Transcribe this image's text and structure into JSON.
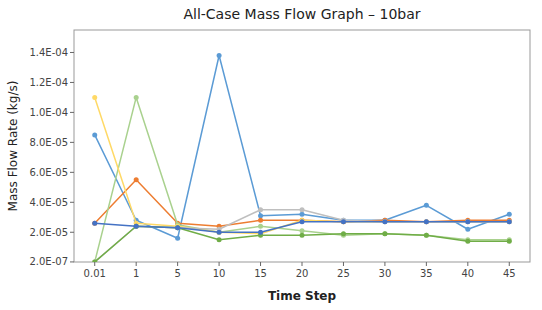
{
  "chart_data": {
    "type": "line",
    "title": "All-Case Mass Flow Graph – 10bar",
    "x_label": "Time Step",
    "y_label": "Mass Flow Rate (kg/s)",
    "categories": [
      "0.01",
      "1",
      "5",
      "10",
      "15",
      "20",
      "25",
      "30",
      "35",
      "40",
      "45"
    ],
    "series": [
      {
        "color": "#5b9bd5",
        "values": [
          8.5e-05,
          2.8e-05,
          1.6e-05,
          0.000138,
          3.1e-05,
          3.2e-05,
          2.8e-05,
          2.8e-05,
          3.8e-05,
          2.2e-05,
          3.2e-05
        ]
      },
      {
        "color": "#ed7d31",
        "values": [
          2.6e-05,
          5.5e-05,
          2.6e-05,
          2.4e-05,
          2.8e-05,
          2.8e-05,
          2.7e-05,
          2.8e-05,
          2.7e-05,
          2.8e-05,
          2.8e-05
        ]
      },
      {
        "color": "#a9d18e",
        "values": [
          2e-07,
          0.00011,
          2.5e-05,
          2e-05,
          2.4e-05,
          2.1e-05,
          1.8e-05,
          1.9e-05,
          1.8e-05,
          1.5e-05,
          1.5e-05
        ]
      },
      {
        "color": "#ffd966",
        "values": [
          0.00011,
          2.6e-05,
          2.4e-05,
          2e-05,
          1.9e-05,
          2.8e-05,
          2.7e-05,
          2.7e-05,
          2.7e-05,
          2.7e-05,
          2.7e-05
        ]
      },
      {
        "color": "#bfbfbf",
        "values": [
          2e-07,
          2.4e-05,
          2.3e-05,
          2.2e-05,
          3.5e-05,
          3.5e-05,
          2.8e-05,
          2.7e-05,
          2.7e-05,
          2.7e-05,
          2.7e-05
        ]
      },
      {
        "color": "#70ad47",
        "values": [
          2e-07,
          2.4e-05,
          2.3e-05,
          1.5e-05,
          1.8e-05,
          1.8e-05,
          1.9e-05,
          1.9e-05,
          1.8e-05,
          1.4e-05,
          1.4e-05
        ]
      },
      {
        "color": "#4472c4",
        "values": [
          2.6e-05,
          2.4e-05,
          2.3e-05,
          2e-05,
          2e-05,
          2.7e-05,
          2.7e-05,
          2.7e-05,
          2.7e-05,
          2.7e-05,
          2.7e-05
        ]
      }
    ],
    "ylim": [
      1.5e-07,
      0.000155
    ],
    "yticks": [
      {
        "value": 2e-07,
        "label": "2.0E-07"
      },
      {
        "value": 2e-05,
        "label": "2.0E-05"
      },
      {
        "value": 4e-05,
        "label": "4.0E-05"
      },
      {
        "value": 6e-05,
        "label": "6.0E-05"
      },
      {
        "value": 8e-05,
        "label": "8.0E-05"
      },
      {
        "value": 0.0001,
        "label": "1.0E-04"
      },
      {
        "value": 0.00012,
        "label": "1.2E-04"
      },
      {
        "value": 0.00014,
        "label": "1.4E-04"
      }
    ],
    "grid": false,
    "marker": "circle"
  }
}
